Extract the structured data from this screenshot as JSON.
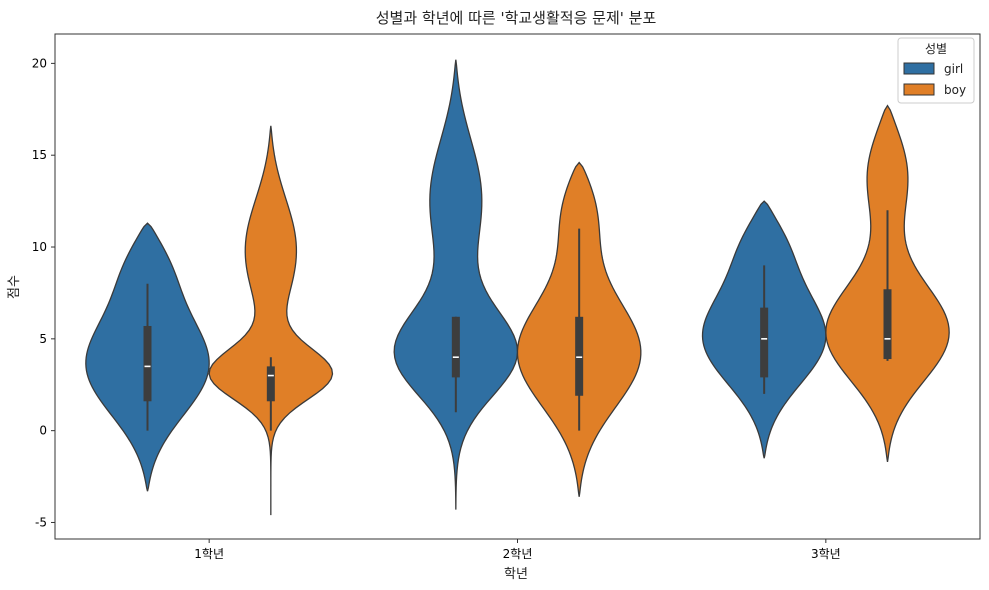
{
  "chart_data": {
    "type": "violin",
    "title": "성별과 학년에 따른 '학교생활적응 문제' 분포",
    "xlabel": "학년",
    "ylabel": "점수",
    "categories": [
      "1학년",
      "2학년",
      "3학년"
    ],
    "ylim": [
      -5.9,
      21.6
    ],
    "yticks": [
      -5,
      0,
      5,
      10,
      15,
      20
    ],
    "ytick_labels": [
      "-5",
      "0",
      "5",
      "10",
      "15",
      "20"
    ],
    "grid": false,
    "legend": {
      "title": "성별",
      "position": "top-right"
    },
    "series": [
      {
        "name": "girl",
        "color": "#2f6fa2",
        "violins": [
          {
            "min": 0,
            "q1": 1.6,
            "median": 3.5,
            "q3": 5.7,
            "max": 8.0,
            "kde_low": -3.3,
            "kde_high": 11.3
          },
          {
            "min": 1.0,
            "q1": 2.9,
            "median": 4.0,
            "q3": 6.2,
            "max": 6.2,
            "kde_low": -4.3,
            "kde_high": 20.2
          },
          {
            "min": 2.0,
            "q1": 2.9,
            "median": 5.0,
            "q3": 6.7,
            "max": 9.0,
            "kde_low": -1.5,
            "kde_high": 12.5
          }
        ]
      },
      {
        "name": "boy",
        "color": "#e07f27",
        "violins": [
          {
            "min": 0,
            "q1": 1.6,
            "median": 3.0,
            "q3": 3.5,
            "max": 4.0,
            "kde_low": -4.6,
            "kde_high": 16.6
          },
          {
            "min": 0,
            "q1": 1.9,
            "median": 4.0,
            "q3": 6.2,
            "max": 11.0,
            "kde_low": -3.6,
            "kde_high": 14.6
          },
          {
            "min": 3.8,
            "q1": 3.9,
            "median": 5.0,
            "q3": 7.7,
            "max": 12.0,
            "kde_low": -1.7,
            "kde_high": 17.7
          }
        ]
      }
    ]
  }
}
